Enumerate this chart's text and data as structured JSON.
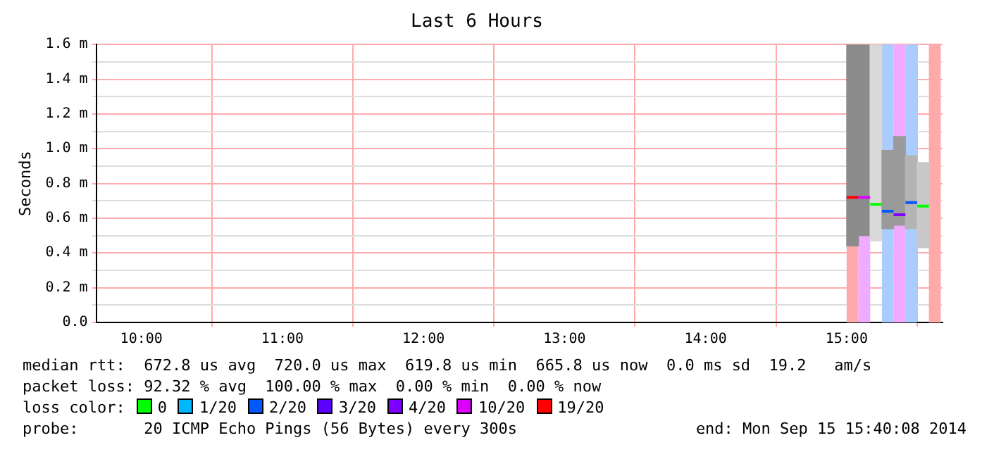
{
  "chart_data": {
    "type": "line",
    "title": "Last 6 Hours",
    "ylabel": "Seconds",
    "legend_title": "loss color:",
    "legend": "bottom",
    "grid": true,
    "xlim": [
      9.68,
      15.68
    ],
    "xticks": [
      {
        "value": 10,
        "label": "10:00"
      },
      {
        "value": 11,
        "label": "11:00"
      },
      {
        "value": 12,
        "label": "12:00"
      },
      {
        "value": 13,
        "label": "13:00"
      },
      {
        "value": 14,
        "label": "14:00"
      },
      {
        "value": 15,
        "label": "15:00"
      }
    ],
    "ylim": [
      0,
      1.6
    ],
    "yticks": [
      {
        "value": 0,
        "label": "0.0"
      },
      {
        "value": 0.1,
        "label": null
      },
      {
        "value": 0.2,
        "label": "0.2 m"
      },
      {
        "value": 0.3,
        "label": null
      },
      {
        "value": 0.4,
        "label": "0.4 m"
      },
      {
        "value": 0.5,
        "label": null
      },
      {
        "value": 0.6,
        "label": "0.6 m"
      },
      {
        "value": 0.7,
        "label": null
      },
      {
        "value": 0.8,
        "label": "0.8 m"
      },
      {
        "value": 0.9,
        "label": null
      },
      {
        "value": 1.0,
        "label": "1.0 m"
      },
      {
        "value": 1.1,
        "label": null
      },
      {
        "value": 1.2,
        "label": "1.2 m"
      },
      {
        "value": 1.3,
        "label": null
      },
      {
        "value": 1.4,
        "label": "1.4 m"
      },
      {
        "value": 1.5,
        "label": null
      },
      {
        "value": 1.6,
        "label": "1.6 m"
      }
    ],
    "series": [
      {
        "type": "bar",
        "x": [
          15.042,
          15.125,
          15.208,
          15.292,
          15.375,
          15.458,
          15.542
        ],
        "base": [
          0.44,
          0.5,
          0.47,
          0.54,
          0.56,
          0.54,
          0.43
        ],
        "values": [
          1.16,
          1.1,
          1.13,
          0.45,
          0.51,
          0.42,
          0.49
        ],
        "colors": [
          "#8c8c8c",
          "#8c8c8c",
          "#d9d9d9",
          "#9a9a9a",
          "#9a9a9a",
          "#b4b4b4",
          "#c8c8c8"
        ]
      },
      {
        "name": "0",
        "color": "#00ff00",
        "x": [
          15.167,
          15.25,
          15.333,
          15.5,
          15.583
        ],
        "values": [
          0.68,
          0.68,
          null,
          0.67,
          0.67
        ]
      },
      {
        "name": "1/20",
        "color": "#00b8ff"
      },
      {
        "name": "2/20",
        "color": "#0059ff",
        "x": [
          15.25,
          15.333,
          15.375,
          15.417,
          15.5
        ],
        "values": [
          0.64,
          0.64,
          null,
          0.69,
          0.69
        ]
      },
      {
        "name": "3/20",
        "color": "#5e00ff"
      },
      {
        "name": "4/20",
        "color": "#7e00ff",
        "x": [
          15.333,
          15.417
        ],
        "values": [
          0.62,
          0.62
        ]
      },
      {
        "name": "10/20",
        "color": "#dd00ff",
        "x": [
          15.083,
          15.167
        ],
        "values": [
          0.72,
          0.72
        ]
      },
      {
        "name": "19/20",
        "color": "#ff0000",
        "x": [
          15,
          15.083
        ],
        "values": [
          0.72,
          0.72
        ]
      }
    ],
    "bands": [
      {
        "axis": "x",
        "from": 15,
        "to": 15.083,
        "color": "#ffaaaa"
      },
      {
        "axis": "x",
        "from": 15.083,
        "to": 15.167,
        "color": "#f0aaff"
      },
      {
        "axis": "x",
        "from": 15.25,
        "to": 15.333,
        "color": "#aaccff"
      },
      {
        "axis": "x",
        "from": 15.333,
        "to": 15.417,
        "color": "#f0aaff"
      },
      {
        "axis": "x",
        "from": 15.417,
        "to": 15.5,
        "color": "#aaccff"
      },
      {
        "axis": "x",
        "from": 15.583,
        "to": 15.667,
        "color": "#ffaaaa"
      }
    ],
    "annotations": [
      "median rtt:  672.8 us avg  720.0 us max  619.8 us min  665.8 us now  0.0 ms sd  19.2   am/s",
      "packet loss: 92.32 % avg  100.00 % max  0.00 % min  0.00 % now",
      "probe:       20 ICMP Echo Pings (56 Bytes) every 300s",
      "end: Mon Sep 15 15:40:08 2014"
    ]
  }
}
